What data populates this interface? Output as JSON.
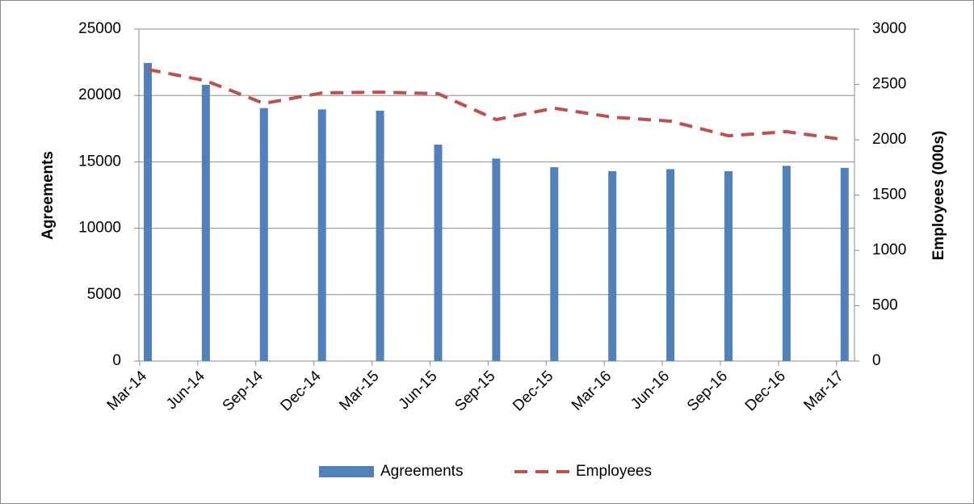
{
  "chart_data": {
    "type": "bar-line",
    "categories": [
      "Mar-14",
      "Jun-14",
      "Sep-14",
      "Dec-14",
      "Mar-15",
      "Jun-15",
      "Sep-15",
      "Dec-15",
      "Mar-16",
      "Jun-16",
      "Sep-16",
      "Dec-16",
      "Mar-17"
    ],
    "series": [
      {
        "name": "Agreements",
        "type": "bar",
        "color": "#4f81bd",
        "values": [
          22450,
          20800,
          19050,
          18950,
          18850,
          16300,
          15250,
          14600,
          14300,
          14450,
          14300,
          14700,
          14550
        ]
      },
      {
        "name": "Employees",
        "type": "line",
        "axis": "y2",
        "color": "#c0504d",
        "dashed": true,
        "values": [
          2635,
          2533,
          2328,
          2423,
          2430,
          2416,
          2182,
          2285,
          2204,
          2168,
          2036,
          2073,
          2000
        ]
      }
    ],
    "ylabel": "Agreements",
    "y2label": "Employees (000s)",
    "ylim": [
      0,
      25000
    ],
    "yticks": [
      0,
      5000,
      10000,
      15000,
      20000,
      25000
    ],
    "y2lim": [
      0,
      3000
    ],
    "y2ticks": [
      0,
      500,
      1000,
      1500,
      2000,
      2500,
      3000
    ],
    "grid": true,
    "legend": "bottom"
  }
}
